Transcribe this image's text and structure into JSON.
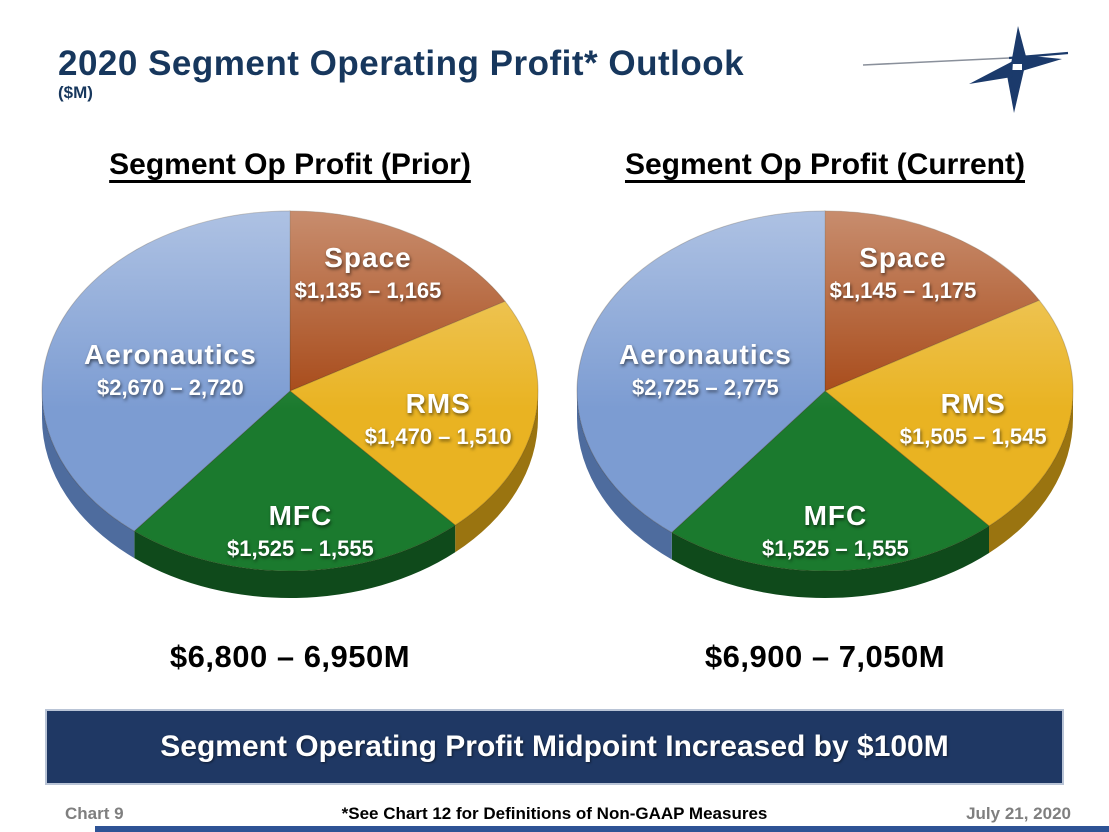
{
  "page": {
    "title": "2020 Segment Operating Profit* Outlook",
    "title_unit": "($M)",
    "accent_color": "#17375D"
  },
  "logo": {
    "name": "lockheed-martin-star",
    "color": "#1B3A6B",
    "line_color": "#8A909B"
  },
  "banner": {
    "text": "Segment Operating Profit Midpoint Increased by $100M",
    "background": "#1F3864",
    "text_color": "#FFFFFF"
  },
  "footer": {
    "chart_number": "Chart 9",
    "note": "*See Chart 12 for Definitions of Non-GAAP Measures",
    "date": "July 21, 2020"
  },
  "chart_data": [
    {
      "type": "pie",
      "title": "Segment Op Profit (Prior)",
      "total_label": "$6,800 – 6,950M",
      "total_low": 6800,
      "total_high": 6950,
      "slices": [
        {
          "label": "Space",
          "value": "$1,135 – 1,165",
          "low": 1135,
          "high": 1165,
          "percent": 16.7,
          "color": "#A64715",
          "side": "#6E2F0D"
        },
        {
          "label": "RMS",
          "value": "$1,470 – 1,510",
          "low": 1470,
          "high": 1510,
          "percent": 21.7,
          "color": "#E9B322",
          "side": "#9A7410"
        },
        {
          "label": "MFC",
          "value": "$1,525 – 1,555",
          "low": 1525,
          "high": 1555,
          "percent": 22.4,
          "color": "#1B7A2E",
          "side": "#0F4A1B"
        },
        {
          "label": "Aeronautics",
          "value": "$2,670 – 2,720",
          "low": 2670,
          "high": 2720,
          "percent": 39.2,
          "color": "#7C9CD2",
          "side": "#4E6C9E"
        }
      ]
    },
    {
      "type": "pie",
      "title": "Segment Op Profit (Current)",
      "total_label": "$6,900 – 7,050M",
      "total_low": 6900,
      "total_high": 7050,
      "slices": [
        {
          "label": "Space",
          "value": "$1,145 – 1,175",
          "low": 1145,
          "high": 1175,
          "percent": 16.6,
          "color": "#A64715",
          "side": "#6E2F0D"
        },
        {
          "label": "RMS",
          "value": "$1,505 – 1,545",
          "low": 1505,
          "high": 1545,
          "percent": 21.9,
          "color": "#E9B322",
          "side": "#9A7410"
        },
        {
          "label": "MFC",
          "value": "$1,525 – 1,555",
          "low": 1525,
          "high": 1555,
          "percent": 22.1,
          "color": "#1B7A2E",
          "side": "#0F4A1B"
        },
        {
          "label": "Aeronautics",
          "value": "$2,725 – 2,775",
          "low": 2725,
          "high": 2775,
          "percent": 39.4,
          "color": "#7C9CD2",
          "side": "#4E6C9E"
        }
      ]
    }
  ]
}
